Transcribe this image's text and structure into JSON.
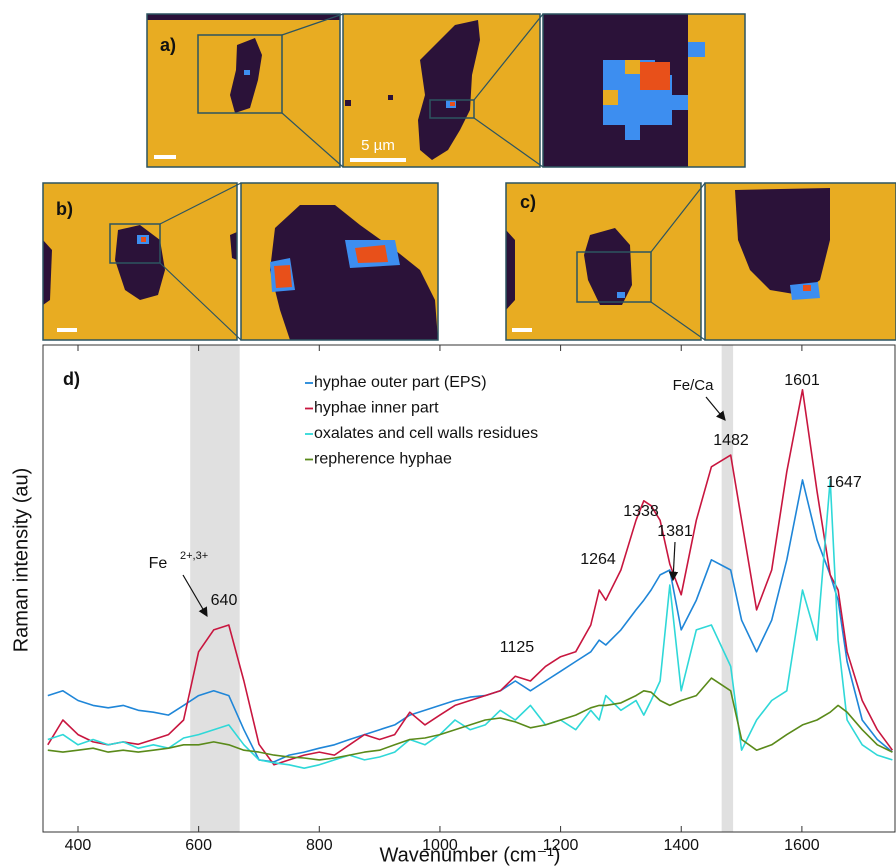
{
  "panel_labels": [
    "a)",
    "b)",
    "c)"
  ],
  "scale_bar_label": "5 µm",
  "chart_data": {
    "type": "line",
    "panel_label": "d)",
    "x_label": "Wavenumber (cm⁻¹)",
    "y_label": "Raman intensity (au)",
    "xlim": [
      342,
      1756
    ],
    "ylim": [
      0,
      100
    ],
    "xticks": [
      400,
      600,
      800,
      1000,
      1200,
      1400,
      1600
    ],
    "highlight_bands": [
      [
        586,
        668
      ],
      [
        1467,
        1486
      ]
    ],
    "annotations": [
      "Fe",
      "2+,3+",
      "640",
      "1125",
      "1264",
      "1338",
      "1381",
      "Fe/Ca",
      "1482",
      "1601",
      "1647"
    ],
    "x": [
      350,
      375,
      400,
      425,
      450,
      475,
      500,
      525,
      550,
      575,
      600,
      625,
      650,
      675,
      700,
      725,
      750,
      775,
      800,
      825,
      850,
      875,
      900,
      925,
      950,
      975,
      1000,
      1025,
      1050,
      1075,
      1100,
      1125,
      1150,
      1175,
      1200,
      1225,
      1250,
      1264,
      1275,
      1300,
      1325,
      1338,
      1350,
      1365,
      1381,
      1400,
      1425,
      1450,
      1482,
      1500,
      1525,
      1550,
      1575,
      1601,
      1625,
      1647,
      1660,
      1675,
      1700,
      1725,
      1750
    ],
    "series": [
      {
        "name": "hyphae outer part (EPS)",
        "color": "#1f86d8",
        "values": [
          28,
          29,
          27,
          26,
          25.5,
          26,
          25,
          24.6,
          24,
          26,
          28,
          29,
          28,
          21,
          14.8,
          14.4,
          15.8,
          16.4,
          17.2,
          17.9,
          19,
          20,
          21,
          22,
          24,
          25,
          26,
          27,
          27.7,
          28,
          29,
          31,
          29,
          31,
          33,
          35,
          37,
          39.4,
          38.4,
          41.5,
          45.6,
          47.6,
          49.7,
          52.8,
          53.8,
          41.5,
          47.6,
          55.9,
          53.8,
          43.5,
          37,
          43.5,
          55.9,
          72.3,
          60,
          52.8,
          47.6,
          35,
          23,
          19,
          16.4
        ]
      },
      {
        "name": "hyphae inner part",
        "color": "#c8163f",
        "values": [
          17.9,
          23,
          20,
          18.5,
          17.9,
          18.5,
          18,
          19,
          20,
          23,
          37,
          41.5,
          42.5,
          31,
          18,
          13.8,
          14.8,
          15.8,
          16.4,
          15.8,
          17.9,
          20,
          19,
          20,
          24.6,
          22,
          24,
          26,
          27,
          28,
          29,
          32,
          31,
          34,
          36,
          37,
          42.5,
          49.7,
          47.6,
          53.8,
          64,
          68,
          67,
          64,
          55,
          48.7,
          64,
          75,
          77.4,
          64,
          45.6,
          53.8,
          74,
          90.8,
          70,
          52.8,
          49.7,
          37,
          27,
          21,
          16.8
        ]
      },
      {
        "name": "oxalates and cell walls residues",
        "color": "#2fd8d8",
        "values": [
          19,
          20,
          17.9,
          19,
          17.9,
          18.5,
          17.2,
          17.9,
          17.2,
          19.3,
          20,
          21,
          22,
          17.9,
          14.8,
          14.2,
          13.8,
          13.1,
          13.8,
          14.8,
          15.8,
          14.8,
          15.4,
          16.4,
          19,
          17.9,
          20,
          23,
          21,
          22,
          25,
          23,
          26,
          22,
          23,
          21,
          25,
          23,
          28,
          25,
          27,
          24,
          27,
          31,
          50.7,
          29,
          41.5,
          42.5,
          34,
          16.8,
          23,
          27,
          29,
          49.7,
          39.4,
          72.3,
          39.4,
          23,
          17.9,
          15.8,
          14.8
        ]
      },
      {
        "name": "repherence hyphae",
        "color": "#5a8a1a",
        "values": [
          16.8,
          16.4,
          16.8,
          17.2,
          16.4,
          16.8,
          16.4,
          16.8,
          17.2,
          17.9,
          17.9,
          18.5,
          17.9,
          16.8,
          16.4,
          15.8,
          15.4,
          15.2,
          14.8,
          15.2,
          15.8,
          16.4,
          16.8,
          17.9,
          19,
          19.3,
          20,
          21,
          22,
          23,
          23.4,
          22.6,
          21.4,
          22,
          23,
          24,
          25.5,
          26,
          26,
          26.5,
          28,
          29,
          28.7,
          27,
          26,
          27,
          28,
          31.6,
          29,
          19,
          16.8,
          17.9,
          20,
          22,
          23,
          24.6,
          26,
          24.6,
          21,
          17.9,
          16.4
        ]
      }
    ]
  }
}
